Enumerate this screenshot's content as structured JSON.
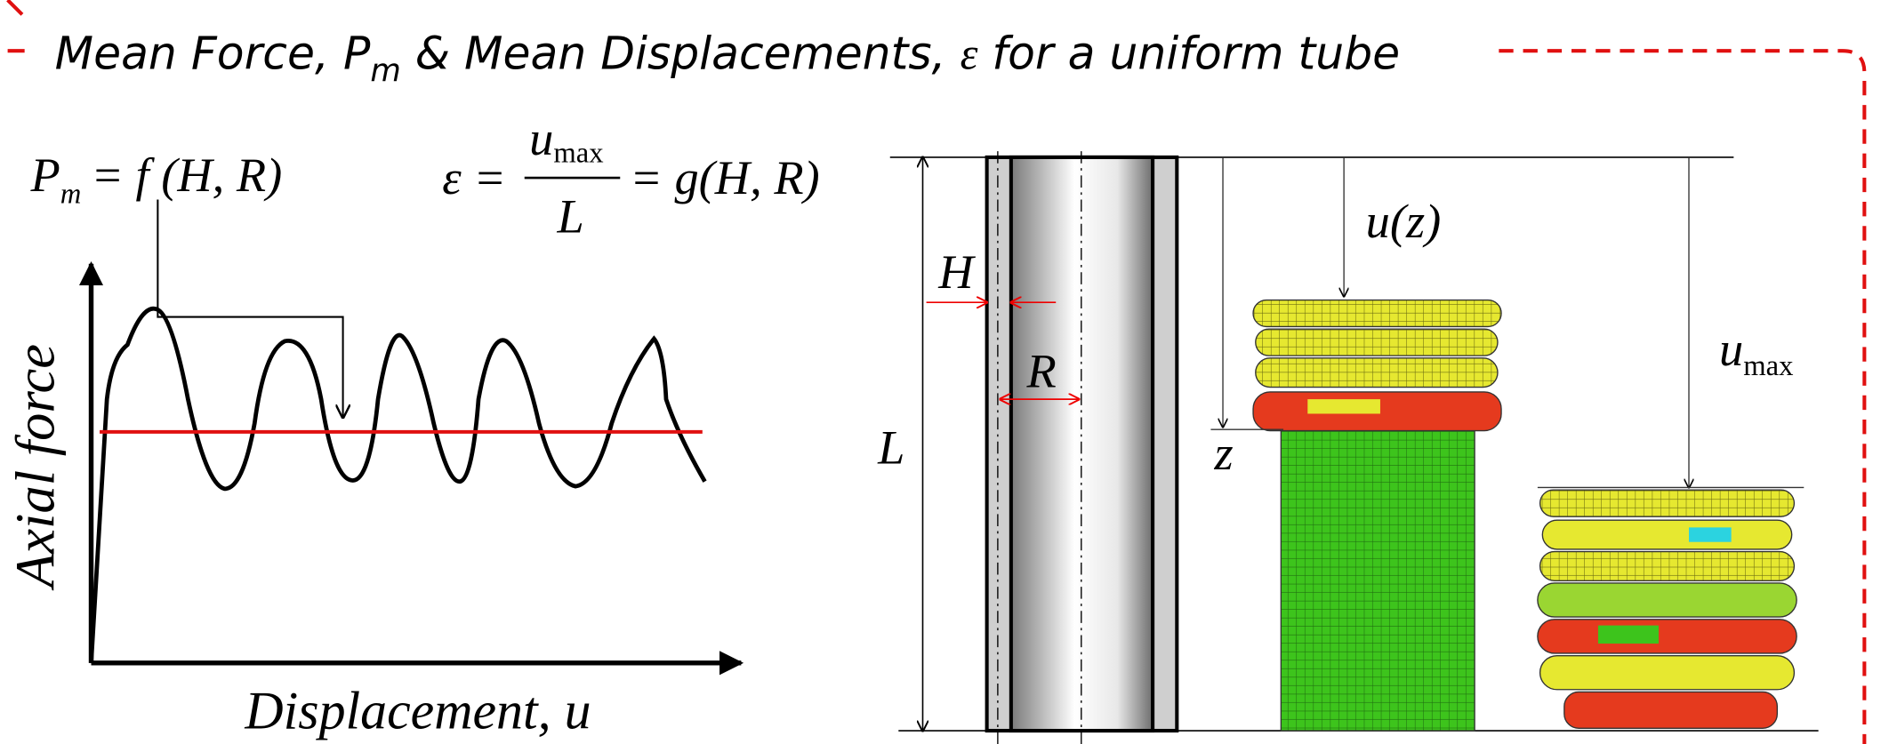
{
  "header": {
    "title_a": "Mean Force, P",
    "title_sub": "m",
    "title_b": " & Mean Displacements, ",
    "title_eps": "ε",
    "title_c": " for a uniform tube"
  },
  "formulas": {
    "force_p": "P",
    "force_sub": "m",
    "force_rhs": "= f (H, R)",
    "eps_lhs": "ε =",
    "eps_num": "u",
    "eps_num_sub": "max",
    "eps_den": "L",
    "eps_rhs": "= g(H, R)"
  },
  "graph": {
    "y_label": "Axial force",
    "x_label": "Displacement, u"
  },
  "tube": {
    "h": "H",
    "r": "R",
    "l": "L",
    "z": "z",
    "uz": "u(z)",
    "umax": "u",
    "umax_sub": "max"
  }
}
